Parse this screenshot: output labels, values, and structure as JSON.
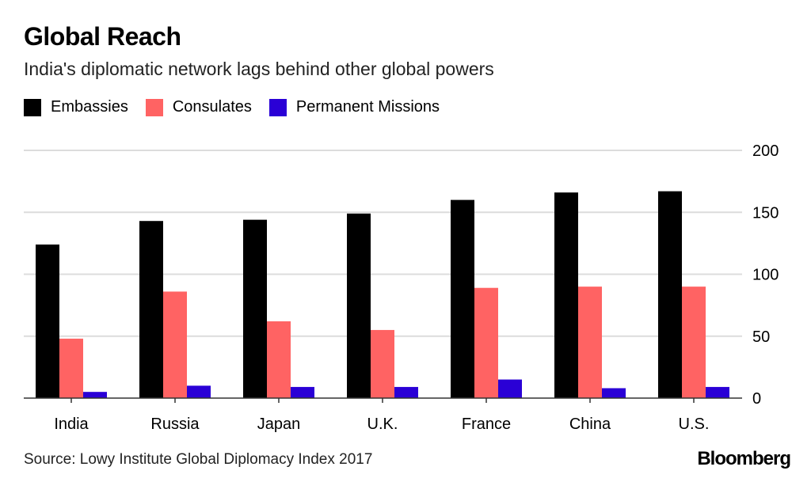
{
  "chart_data": {
    "type": "bar",
    "title": "Global Reach",
    "subtitle": "India's diplomatic network lags behind other global powers",
    "categories": [
      "India",
      "Russia",
      "Japan",
      "U.K.",
      "France",
      "China",
      "U.S."
    ],
    "series": [
      {
        "name": "Embassies",
        "color": "#000000",
        "values": [
          124,
          143,
          144,
          149,
          160,
          166,
          167
        ]
      },
      {
        "name": "Consulates",
        "color": "#ff6363",
        "values": [
          48,
          86,
          62,
          55,
          89,
          90,
          90
        ]
      },
      {
        "name": "Permanent Missions",
        "color": "#2a00d6",
        "values": [
          5,
          10,
          9,
          9,
          15,
          8,
          9
        ]
      }
    ],
    "ylim": [
      0,
      200
    ],
    "yticks": [
      0,
      50,
      100,
      150,
      200
    ],
    "ytick_labels": [
      "0",
      "50",
      "100",
      "150",
      "200"
    ],
    "y_axis_position": "right",
    "grid": true,
    "legend_placement": "top-left",
    "source": "Source: Lowy Institute Global Diplomacy Index 2017"
  },
  "brand": "Bloomberg"
}
